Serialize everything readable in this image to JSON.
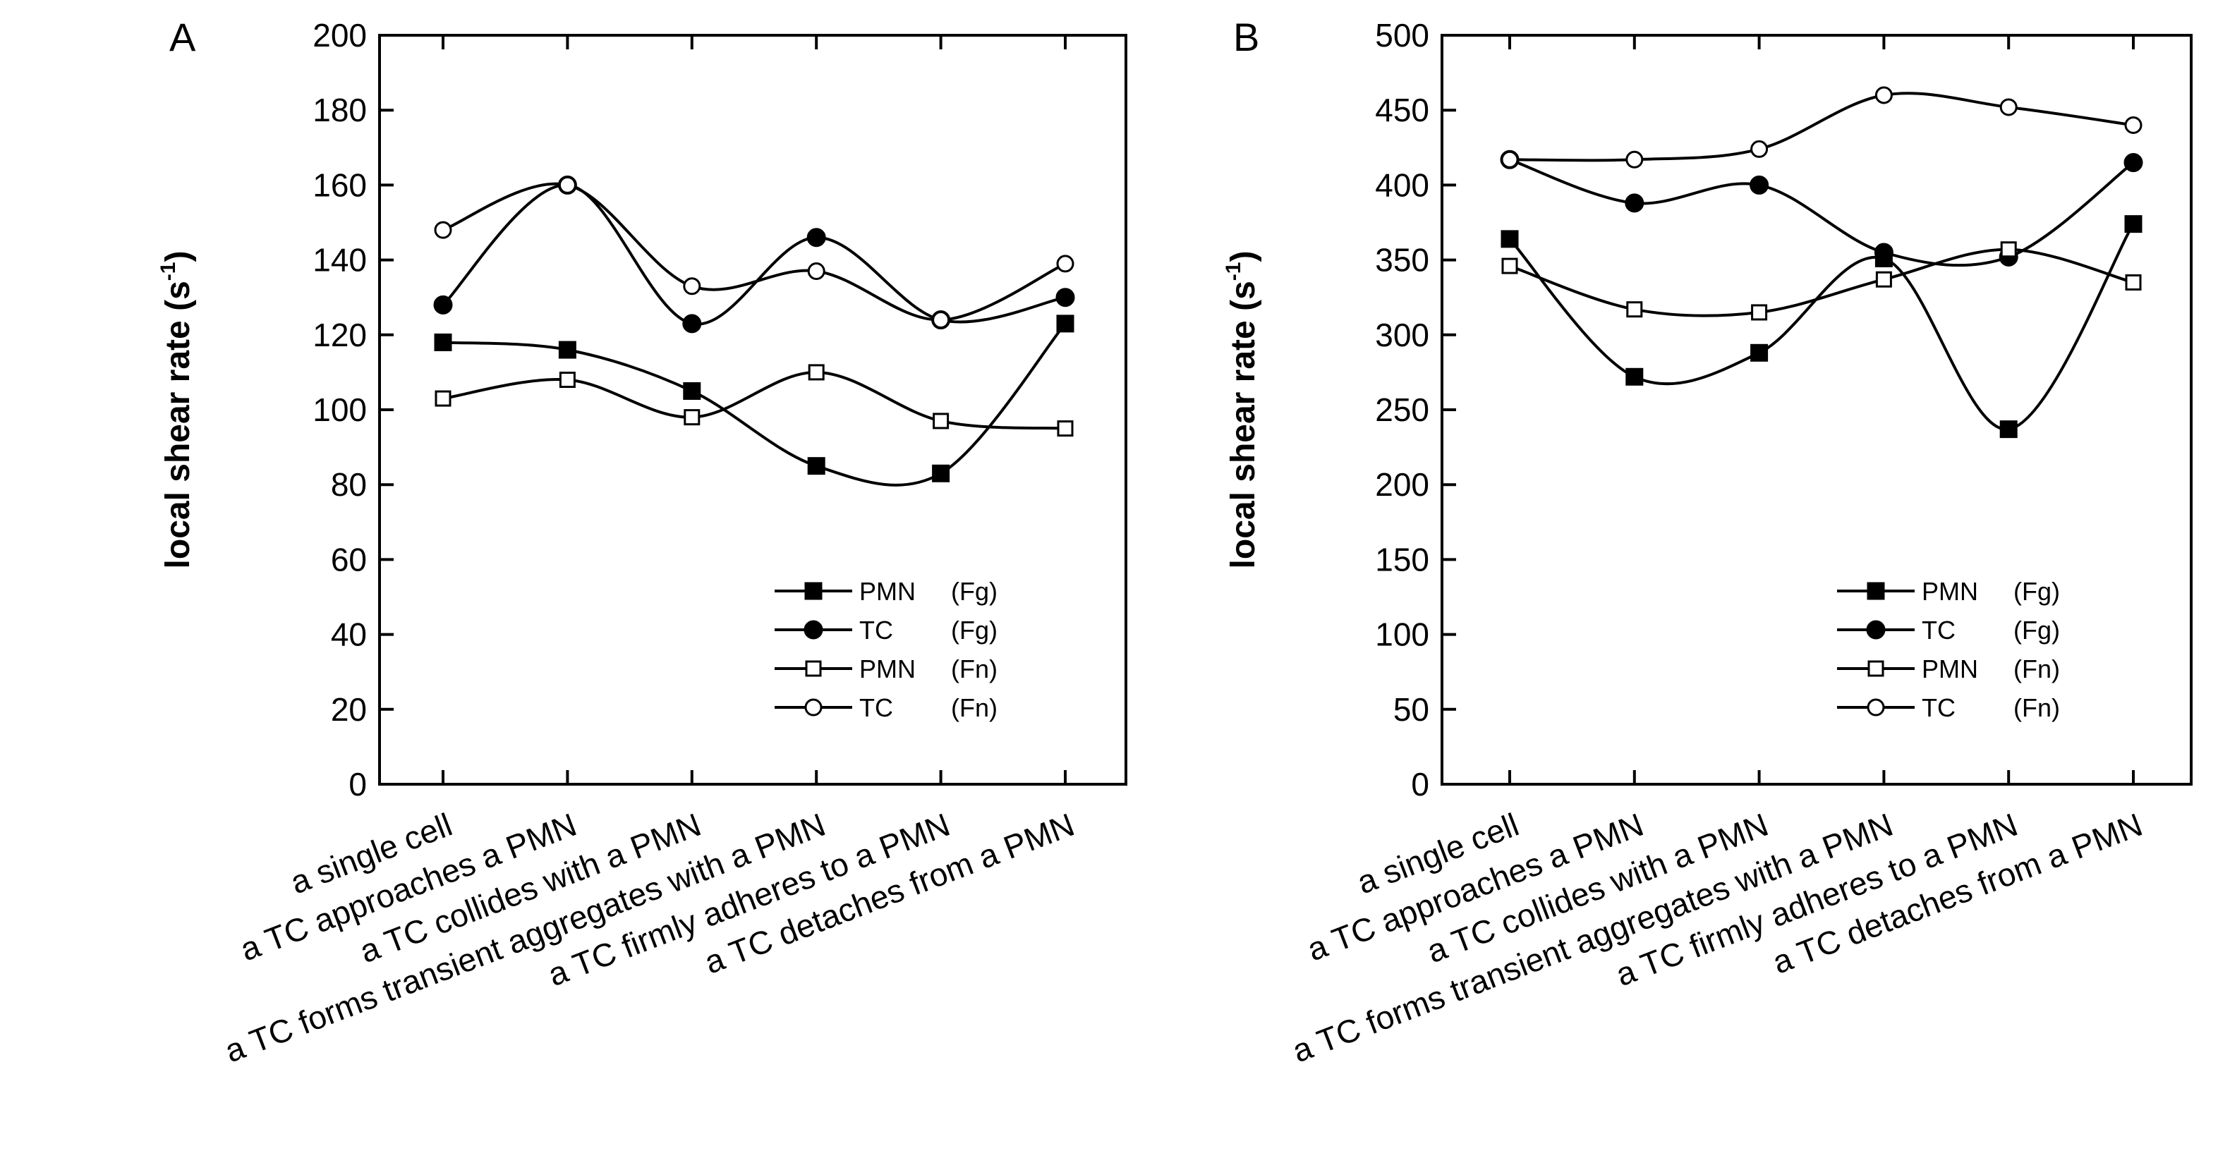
{
  "chart_data": [
    {
      "type": "line",
      "panel_label": "A",
      "ylabel": "local shear rate",
      "ylabel_unit_base": "(s",
      "ylabel_unit_sup": "-1",
      "ylabel_unit_close": ")",
      "ylim": [
        0,
        200
      ],
      "yticks": [
        0,
        20,
        40,
        60,
        80,
        100,
        120,
        140,
        160,
        180,
        200
      ],
      "categories": [
        "a single cell",
        "a TC approaches a PMN",
        "a TC collides with a PMN",
        "a TC forms transient aggregates with a PMN",
        "a TC firmly adheres to a PMN",
        "a TC detaches from a PMN"
      ],
      "series": [
        {
          "name": "PMN",
          "substrate": "(Fg)",
          "marker": "filled-square",
          "values": [
            118,
            116,
            105,
            85,
            83,
            123
          ]
        },
        {
          "name": "TC",
          "substrate": "(Fg)",
          "marker": "filled-circle",
          "values": [
            128,
            160,
            123,
            146,
            124,
            130
          ]
        },
        {
          "name": "PMN",
          "substrate": "(Fn)",
          "marker": "open-square",
          "values": [
            103,
            108,
            98,
            110,
            97,
            95
          ]
        },
        {
          "name": "TC",
          "substrate": "(Fn)",
          "marker": "open-circle",
          "values": [
            148,
            160,
            133,
            137,
            124,
            139
          ]
        }
      ],
      "legend_position": "lower-right"
    },
    {
      "type": "line",
      "panel_label": "B",
      "ylabel": "local shear rate",
      "ylabel_unit_base": "(s",
      "ylabel_unit_sup": "-1",
      "ylabel_unit_close": ")",
      "ylim": [
        0,
        500
      ],
      "yticks": [
        0,
        50,
        100,
        150,
        200,
        250,
        300,
        350,
        400,
        450,
        500
      ],
      "categories": [
        "a single cell",
        "a TC approaches a PMN",
        "a TC collides with a PMN",
        "a TC forms transient aggregates with a PMN",
        "a TC firmly adheres to a PMN",
        "a TC detaches from a PMN"
      ],
      "series": [
        {
          "name": "PMN",
          "substrate": "(Fg)",
          "marker": "filled-square",
          "values": [
            364,
            272,
            288,
            351,
            237,
            374
          ]
        },
        {
          "name": "TC",
          "substrate": "(Fg)",
          "marker": "filled-circle",
          "values": [
            417,
            388,
            400,
            355,
            352,
            415
          ]
        },
        {
          "name": "PMN",
          "substrate": "(Fn)",
          "marker": "open-square",
          "values": [
            346,
            317,
            315,
            337,
            357,
            335
          ]
        },
        {
          "name": "TC",
          "substrate": "(Fn)",
          "marker": "open-circle",
          "values": [
            417,
            417,
            424,
            460,
            452,
            440
          ]
        }
      ],
      "legend_position": "lower-right"
    }
  ]
}
